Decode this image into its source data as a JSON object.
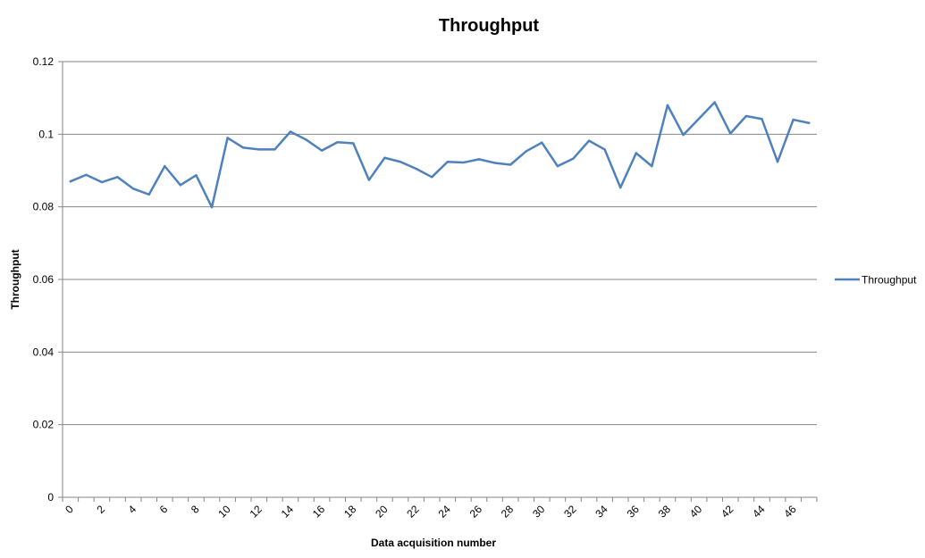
{
  "chart_data": {
    "type": "line",
    "title": "Throughput",
    "xlabel": "Data acquisition number",
    "ylabel": "Throughput",
    "xlim": [
      0,
      47
    ],
    "ylim": [
      0,
      0.12
    ],
    "y_ticks": [
      "0",
      "0.02",
      "0.04",
      "0.06",
      "0.08",
      "0.1",
      "0.12"
    ],
    "y_tick_values": [
      0,
      0.02,
      0.04,
      0.06,
      0.08,
      0.1,
      0.12
    ],
    "x_tick_values": [
      0,
      2,
      4,
      6,
      8,
      10,
      12,
      14,
      16,
      18,
      20,
      22,
      24,
      26,
      28,
      30,
      32,
      34,
      36,
      38,
      40,
      42,
      44,
      46
    ],
    "x_ticks": [
      "0",
      "2",
      "4",
      "6",
      "8",
      "10",
      "12",
      "14",
      "16",
      "18",
      "20",
      "22",
      "24",
      "26",
      "28",
      "30",
      "32",
      "34",
      "36",
      "38",
      "40",
      "42",
      "44",
      "46"
    ],
    "grid": "horizontal",
    "legend_position": "right",
    "colors": {
      "series": "#4f81bd",
      "grid": "#868686",
      "axis": "#868686"
    },
    "series": [
      {
        "name": "Throughput",
        "x": [
          0,
          1,
          2,
          3,
          4,
          5,
          6,
          7,
          8,
          9,
          10,
          11,
          12,
          13,
          14,
          15,
          16,
          17,
          18,
          19,
          20,
          21,
          22,
          23,
          24,
          25,
          26,
          27,
          28,
          29,
          30,
          31,
          32,
          33,
          34,
          35,
          36,
          37,
          38,
          39,
          40,
          41,
          42,
          43,
          44,
          45,
          46,
          47
        ],
        "values": [
          0.087,
          0.0888,
          0.0868,
          0.0882,
          0.085,
          0.0834,
          0.0912,
          0.086,
          0.0887,
          0.0799,
          0.099,
          0.0963,
          0.0958,
          0.0958,
          0.1007,
          0.0985,
          0.0955,
          0.0978,
          0.0975,
          0.0874,
          0.0935,
          0.0924,
          0.0905,
          0.0882,
          0.0924,
          0.0922,
          0.0931,
          0.0921,
          0.0916,
          0.0953,
          0.0977,
          0.0912,
          0.0933,
          0.0982,
          0.0958,
          0.0853,
          0.0948,
          0.0912,
          0.108,
          0.0998,
          0.1043,
          0.1088,
          0.1002,
          0.105,
          0.1042,
          0.0924,
          0.104,
          0.1031
        ]
      }
    ]
  }
}
